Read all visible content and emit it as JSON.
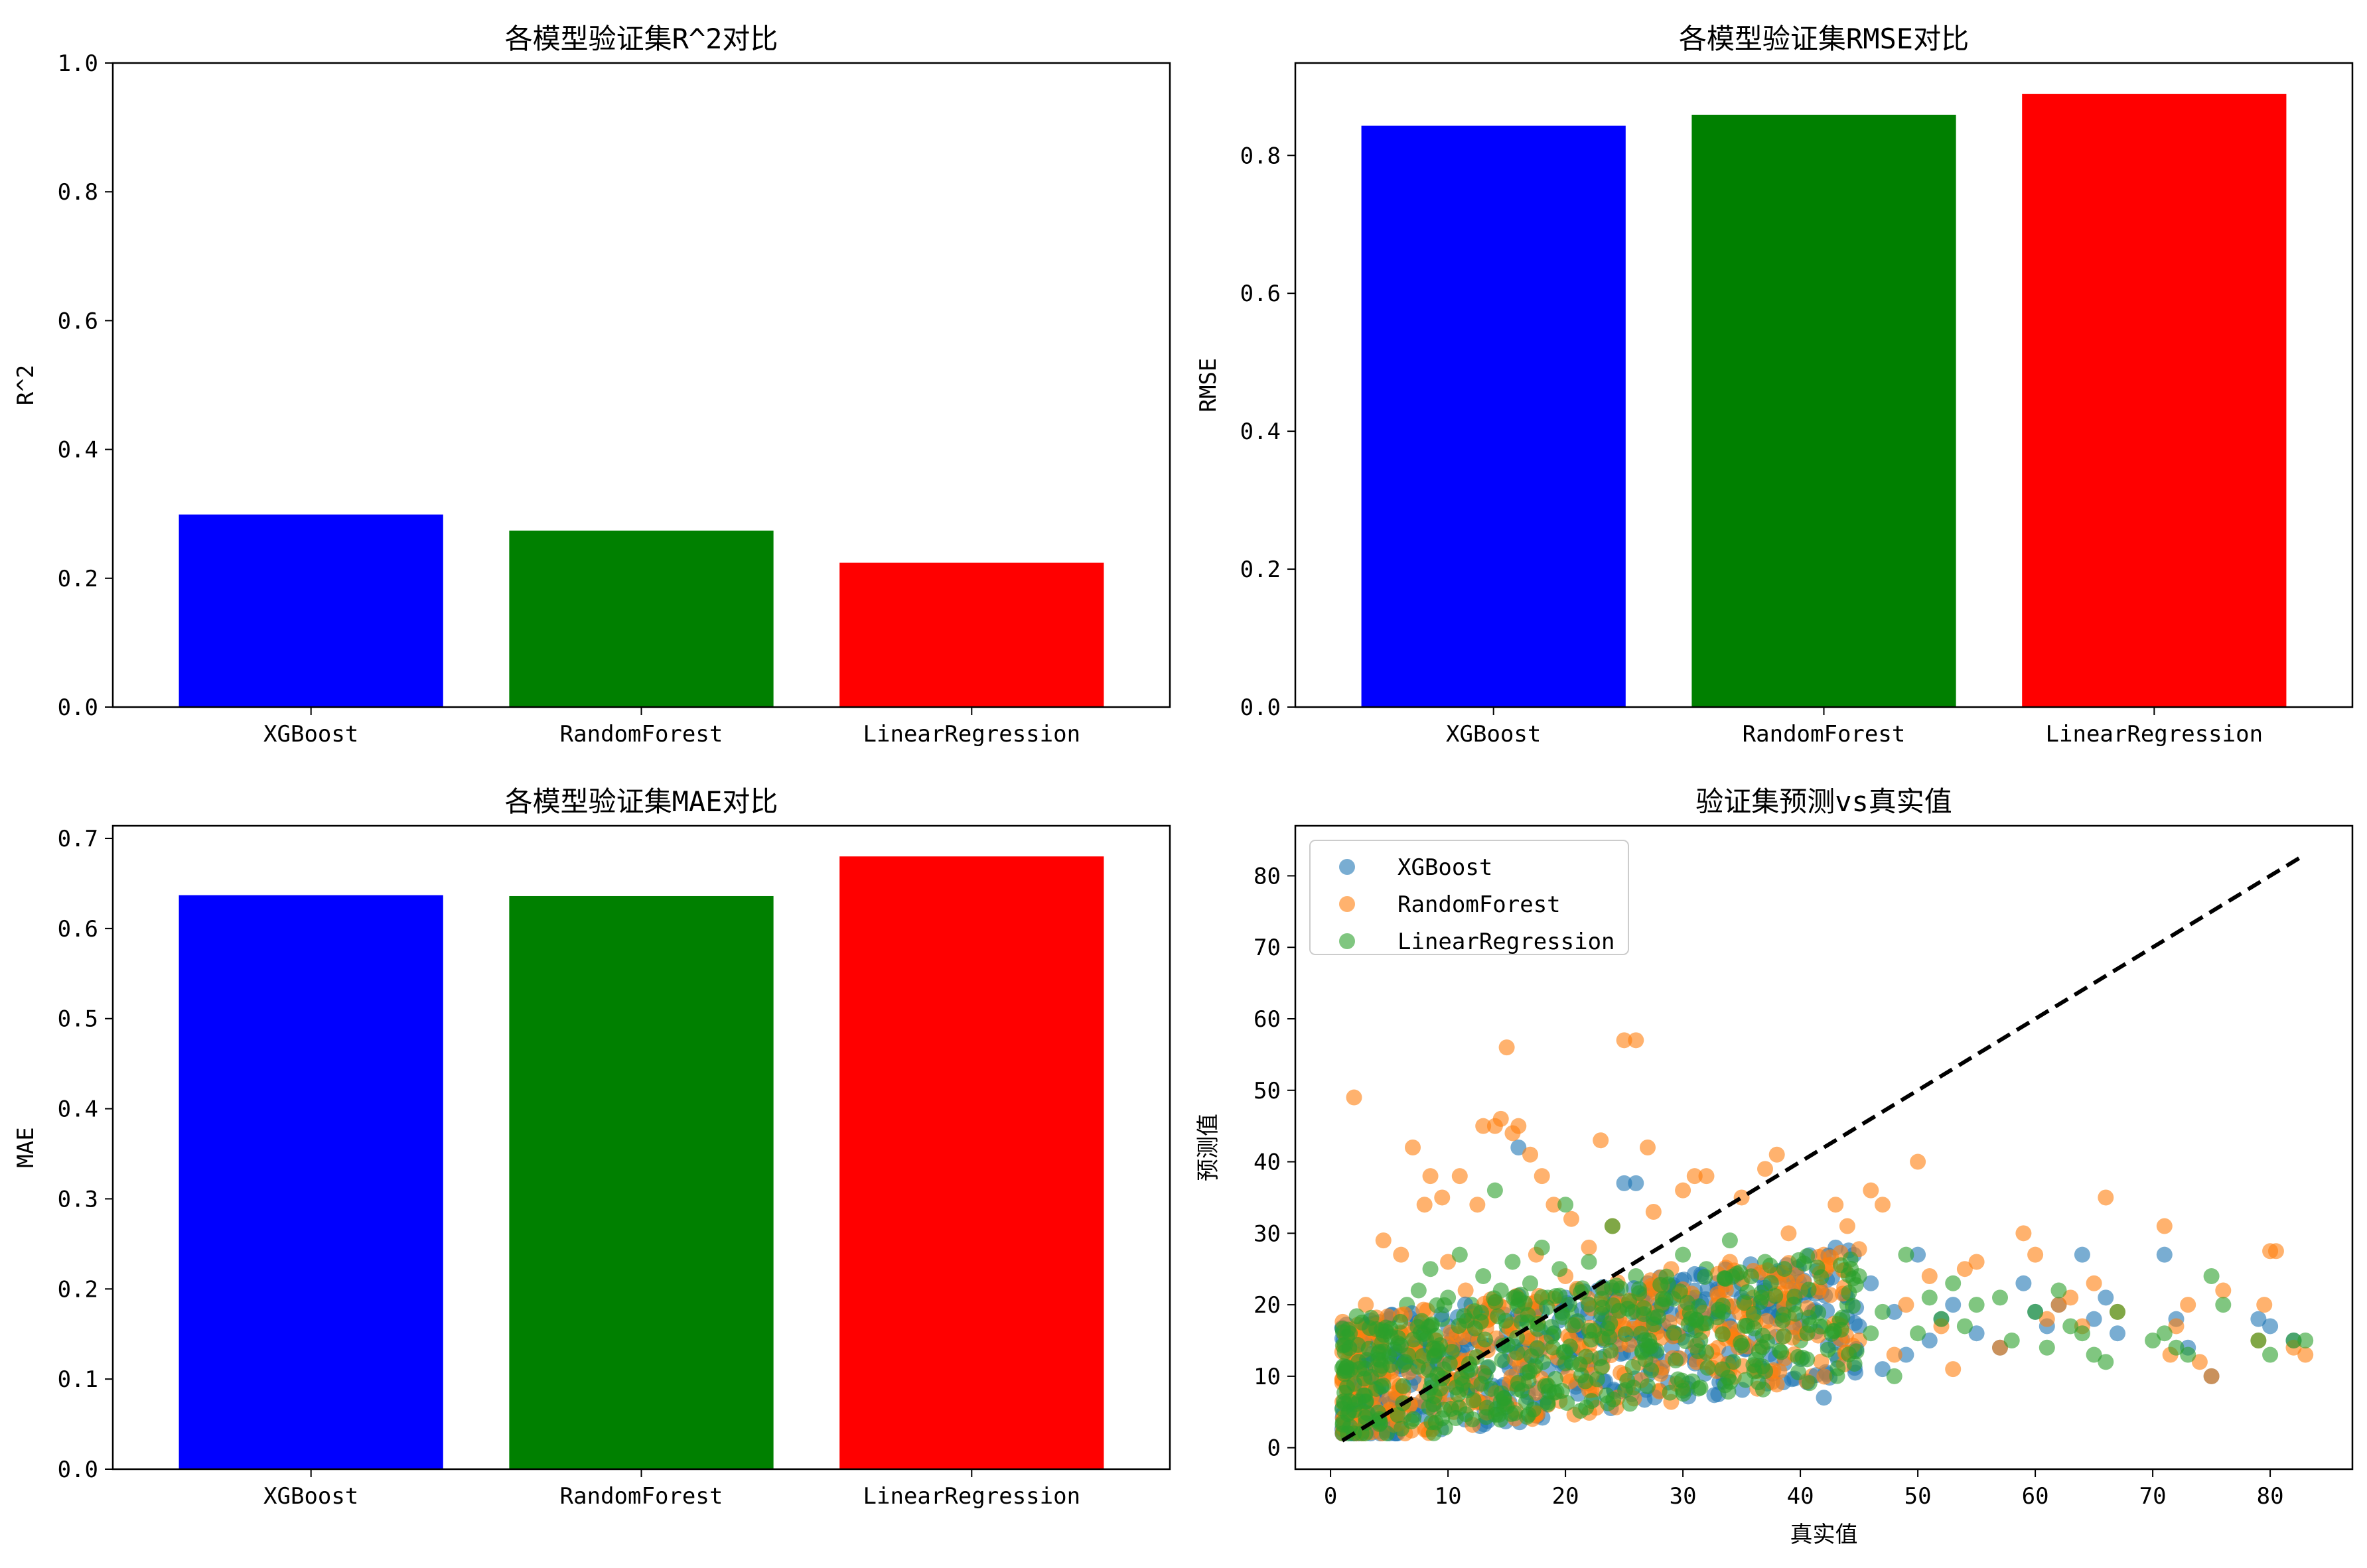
{
  "chart_data": [
    {
      "type": "bar",
      "title": "各模型验证集R^2对比",
      "xlabel": "",
      "ylabel": "R^2",
      "categories": [
        "XGBoost",
        "RandomForest",
        "LinearRegression"
      ],
      "values": [
        0.299,
        0.274,
        0.224
      ],
      "colors": [
        "#0000ff",
        "#008000",
        "#ff0000"
      ],
      "ylim": [
        0,
        1.0
      ],
      "yticks": [
        0.0,
        0.2,
        0.4,
        0.6,
        0.8,
        1.0
      ],
      "grid": false
    },
    {
      "type": "bar",
      "title": "各模型验证集RMSE对比",
      "xlabel": "",
      "ylabel": "RMSE",
      "categories": [
        "XGBoost",
        "RandomForest",
        "LinearRegression"
      ],
      "values": [
        0.843,
        0.859,
        0.889
      ],
      "colors": [
        "#0000ff",
        "#008000",
        "#ff0000"
      ],
      "ylim": [
        0,
        0.934
      ],
      "yticks": [
        0.0,
        0.2,
        0.4,
        0.6,
        0.8
      ],
      "grid": false
    },
    {
      "type": "bar",
      "title": "各模型验证集MAE对比",
      "xlabel": "",
      "ylabel": "MAE",
      "categories": [
        "XGBoost",
        "RandomForest",
        "LinearRegression"
      ],
      "values": [
        0.637,
        0.636,
        0.68
      ],
      "colors": [
        "#0000ff",
        "#008000",
        "#ff0000"
      ],
      "ylim": [
        0,
        0.714
      ],
      "yticks": [
        0.0,
        0.1,
        0.2,
        0.3,
        0.4,
        0.5,
        0.6,
        0.7
      ],
      "grid": false
    },
    {
      "type": "scatter",
      "title": "验证集预测vs真实值",
      "xlabel": "真实值",
      "ylabel": "预测值",
      "xlim": [
        -3,
        87
      ],
      "ylim": [
        -3,
        87
      ],
      "xticks": [
        0,
        10,
        20,
        30,
        40,
        50,
        60,
        70,
        80
      ],
      "yticks": [
        0,
        10,
        20,
        30,
        40,
        50,
        60,
        70,
        80
      ],
      "legend_position": "top-left",
      "grid": false,
      "reference_line": {
        "x": [
          1,
          83
        ],
        "y": [
          1,
          83
        ],
        "color": "#000000",
        "style": "dashed"
      },
      "series": [
        {
          "name": "XGBoost",
          "color": "#1f77b4",
          "points": [
            [
              1.5,
              7
            ],
            [
              2,
              9
            ],
            [
              3,
              12
            ],
            [
              3.5,
              15
            ],
            [
              4,
              10
            ],
            [
              5,
              13
            ],
            [
              6,
              11
            ],
            [
              7,
              14
            ],
            [
              8,
              16
            ],
            [
              9,
              12
            ],
            [
              10,
              17
            ],
            [
              11,
              13
            ],
            [
              12,
              18
            ],
            [
              13,
              14
            ],
            [
              14,
              20
            ],
            [
              15,
              16
            ],
            [
              16,
              42
            ],
            [
              16,
              18
            ],
            [
              17,
              15
            ],
            [
              18,
              19
            ],
            [
              19,
              16
            ],
            [
              20,
              21
            ],
            [
              21,
              17
            ],
            [
              22,
              20
            ],
            [
              23,
              18
            ],
            [
              24,
              22
            ],
            [
              25,
              37
            ],
            [
              26,
              37
            ],
            [
              26,
              19
            ],
            [
              27,
              23
            ],
            [
              28,
              17
            ],
            [
              29,
              21
            ],
            [
              30,
              19
            ],
            [
              31,
              22
            ],
            [
              32,
              18
            ],
            [
              33,
              20
            ],
            [
              34,
              17
            ],
            [
              35,
              21
            ],
            [
              36,
              19
            ],
            [
              37,
              22
            ],
            [
              38,
              18
            ],
            [
              39,
              20
            ],
            [
              40,
              16
            ],
            [
              41,
              19
            ],
            [
              42,
              7
            ],
            [
              43,
              28
            ],
            [
              44,
              21
            ],
            [
              45,
              17
            ],
            [
              46,
              23
            ],
            [
              47,
              11
            ],
            [
              48,
              19
            ],
            [
              49,
              13
            ],
            [
              50,
              27
            ],
            [
              51,
              15
            ],
            [
              52,
              18
            ],
            [
              53,
              20
            ],
            [
              55,
              16
            ],
            [
              57,
              14
            ],
            [
              59,
              23
            ],
            [
              60,
              19
            ],
            [
              61,
              17
            ],
            [
              62,
              20
            ],
            [
              64,
              27
            ],
            [
              65,
              18
            ],
            [
              66,
              21
            ],
            [
              67,
              16
            ],
            [
              71,
              27
            ],
            [
              72,
              18
            ],
            [
              73,
              14
            ],
            [
              75,
              10
            ],
            [
              79,
              18
            ],
            [
              80,
              17
            ],
            [
              82,
              15
            ]
          ]
        },
        {
          "name": "RandomForest",
          "color": "#ff7f0e",
          "points": [
            [
              1.5,
              6
            ],
            [
              2,
              49
            ],
            [
              2.5,
              8
            ],
            [
              3,
              20
            ],
            [
              3.5,
              5
            ],
            [
              4,
              16
            ],
            [
              4.5,
              29
            ],
            [
              5,
              11
            ],
            [
              5.5,
              7
            ],
            [
              6,
              27
            ],
            [
              6.5,
              13
            ],
            [
              7,
              42
            ],
            [
              7.5,
              9
            ],
            [
              8,
              34
            ],
            [
              8.5,
              38
            ],
            [
              9,
              15
            ],
            [
              9.5,
              35
            ],
            [
              10,
              26
            ],
            [
              10.5,
              5
            ],
            [
              11,
              38
            ],
            [
              11.5,
              22
            ],
            [
              12,
              8
            ],
            [
              12.5,
              34
            ],
            [
              13,
              45
            ],
            [
              13.5,
              18
            ],
            [
              14,
              45
            ],
            [
              14.5,
              46
            ],
            [
              15,
              56
            ],
            [
              15.5,
              44
            ],
            [
              16,
              45
            ],
            [
              16.5,
              12
            ],
            [
              17,
              41
            ],
            [
              17.5,
              27
            ],
            [
              18,
              38
            ],
            [
              18.5,
              6
            ],
            [
              19,
              34
            ],
            [
              19.5,
              20
            ],
            [
              20,
              24
            ],
            [
              20.5,
              32
            ],
            [
              21,
              9
            ],
            [
              22,
              28
            ],
            [
              23,
              43
            ],
            [
              24,
              31
            ],
            [
              25,
              57
            ],
            [
              26,
              57
            ],
            [
              26.5,
              15
            ],
            [
              27,
              42
            ],
            [
              27.5,
              33
            ],
            [
              28,
              8
            ],
            [
              29,
              25
            ],
            [
              30,
              36
            ],
            [
              31,
              38
            ],
            [
              32,
              38
            ],
            [
              33,
              14
            ],
            [
              34,
              26
            ],
            [
              35,
              35
            ],
            [
              36,
              21
            ],
            [
              37,
              39
            ],
            [
              38,
              41
            ],
            [
              39,
              30
            ],
            [
              40,
              17
            ],
            [
              41,
              10
            ],
            [
              42,
              27
            ],
            [
              43,
              34
            ],
            [
              44,
              31
            ],
            [
              45,
              15
            ],
            [
              46,
              36
            ],
            [
              47,
              34
            ],
            [
              48,
              13
            ],
            [
              49,
              20
            ],
            [
              50,
              40
            ],
            [
              51,
              24
            ],
            [
              52,
              17
            ],
            [
              53,
              11
            ],
            [
              54,
              25
            ],
            [
              55,
              26
            ],
            [
              57,
              14
            ],
            [
              59,
              30
            ],
            [
              60,
              27
            ],
            [
              61,
              18
            ],
            [
              62,
              20
            ],
            [
              63,
              21
            ],
            [
              64,
              17
            ],
            [
              65,
              23
            ],
            [
              66,
              35
            ],
            [
              67,
              19
            ],
            [
              71,
              31
            ],
            [
              71.5,
              13
            ],
            [
              72,
              17
            ],
            [
              73,
              20
            ],
            [
              74,
              12
            ],
            [
              75,
              10
            ],
            [
              76,
              22
            ],
            [
              79,
              15
            ],
            [
              79.5,
              20
            ],
            [
              80,
              27.5
            ],
            [
              80.5,
              27.5
            ],
            [
              82,
              14
            ],
            [
              83,
              13
            ]
          ]
        },
        {
          "name": "LinearRegression",
          "color": "#2ca02c",
          "points": [
            [
              1.5,
              9
            ],
            [
              2,
              11
            ],
            [
              2.5,
              14
            ],
            [
              3,
              17
            ],
            [
              3.5,
              12
            ],
            [
              4,
              15
            ],
            [
              4.5,
              10
            ],
            [
              5,
              18
            ],
            [
              5.5,
              13
            ],
            [
              6,
              16
            ],
            [
              6.5,
              20
            ],
            [
              7,
              12
            ],
            [
              7.5,
              22
            ],
            [
              8,
              15
            ],
            [
              8.5,
              25
            ],
            [
              9,
              13
            ],
            [
              9.5,
              18
            ],
            [
              10,
              21
            ],
            [
              10.5,
              14
            ],
            [
              11,
              27
            ],
            [
              11.5,
              17
            ],
            [
              12,
              20
            ],
            [
              12.5,
              15
            ],
            [
              13,
              24
            ],
            [
              13.5,
              19
            ],
            [
              14,
              36
            ],
            [
              14.5,
              22
            ],
            [
              15,
              17
            ],
            [
              15.5,
              26
            ],
            [
              16,
              20
            ],
            [
              16.5,
              14
            ],
            [
              17,
              23
            ],
            [
              17.5,
              18
            ],
            [
              18,
              28
            ],
            [
              18.5,
              21
            ],
            [
              19,
              16
            ],
            [
              19.5,
              25
            ],
            [
              20,
              34
            ],
            [
              20.5,
              19
            ],
            [
              21,
              22
            ],
            [
              22,
              26
            ],
            [
              23,
              17
            ],
            [
              24,
              31
            ],
            [
              25,
              20
            ],
            [
              26,
              24
            ],
            [
              27,
              18
            ],
            [
              28,
              22
            ],
            [
              29,
              16
            ],
            [
              30,
              27
            ],
            [
              31,
              21
            ],
            [
              32,
              25
            ],
            [
              33,
              19
            ],
            [
              34,
              29
            ],
            [
              35,
              23
            ],
            [
              36,
              18
            ],
            [
              37,
              26
            ],
            [
              38,
              20
            ],
            [
              39,
              24
            ],
            [
              40,
              15
            ],
            [
              41,
              22
            ],
            [
              42,
              17
            ],
            [
              43,
              13
            ],
            [
              44,
              20
            ],
            [
              45,
              24
            ],
            [
              46,
              16
            ],
            [
              47,
              19
            ],
            [
              48,
              10
            ],
            [
              49,
              27
            ],
            [
              50,
              16
            ],
            [
              51,
              21
            ],
            [
              52,
              18
            ],
            [
              53,
              23
            ],
            [
              54,
              17
            ],
            [
              55,
              20
            ],
            [
              57,
              21
            ],
            [
              58,
              15
            ],
            [
              60,
              19
            ],
            [
              61,
              14
            ],
            [
              62,
              22
            ],
            [
              63,
              17
            ],
            [
              64,
              16
            ],
            [
              65,
              13
            ],
            [
              66,
              12
            ],
            [
              67,
              19
            ],
            [
              70,
              15
            ],
            [
              71,
              16
            ],
            [
              72,
              14
            ],
            [
              73,
              13
            ],
            [
              75,
              24
            ],
            [
              76,
              20
            ],
            [
              79,
              15
            ],
            [
              80,
              13
            ],
            [
              82,
              15
            ],
            [
              83,
              15
            ]
          ]
        }
      ]
    }
  ]
}
